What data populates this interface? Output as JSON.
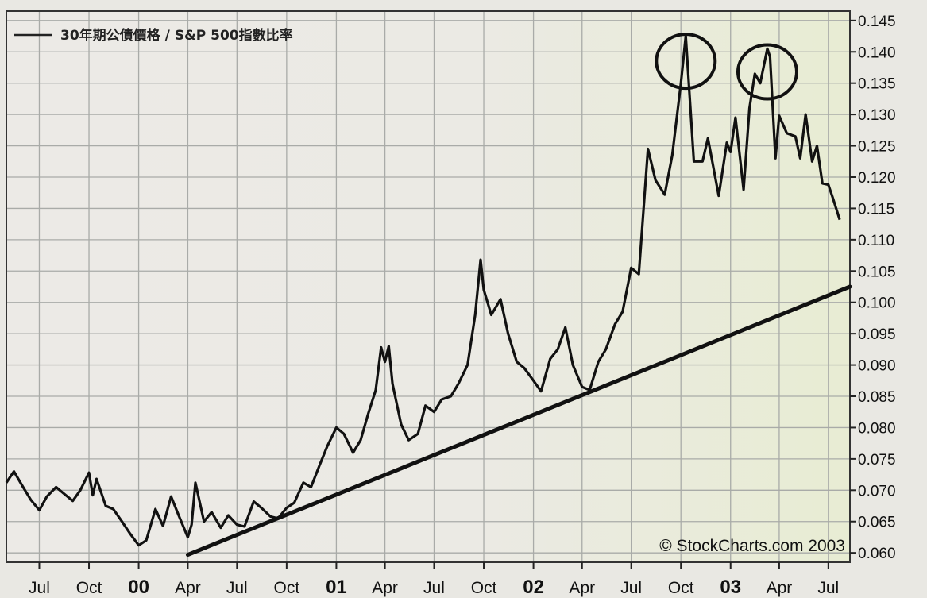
{
  "chart_data": {
    "type": "line",
    "title": "",
    "xlabel": "",
    "ylabel": "",
    "legend": {
      "label": "30年期公債價格 / S&P 500指數比率",
      "placement": "top-left"
    },
    "copyright": "© StockCharts.com 2003",
    "ylim": [
      0.0585,
      0.1465
    ],
    "y_ticks": [
      "0.060",
      "0.065",
      "0.070",
      "0.075",
      "0.080",
      "0.085",
      "0.090",
      "0.095",
      "0.100",
      "0.105",
      "0.110",
      "0.115",
      "0.120",
      "0.125",
      "0.130",
      "0.135",
      "0.140",
      "0.145"
    ],
    "x_range": [
      "1999-05-01",
      "2003-08-10"
    ],
    "x_ticks": [
      {
        "label": "Jul",
        "date": "1999-07-01",
        "year": false
      },
      {
        "label": "Oct",
        "date": "1999-10-01",
        "year": false
      },
      {
        "label": "00",
        "date": "2000-01-01",
        "year": true
      },
      {
        "label": "Apr",
        "date": "2000-04-01",
        "year": false
      },
      {
        "label": "Jul",
        "date": "2000-07-01",
        "year": false
      },
      {
        "label": "Oct",
        "date": "2000-10-01",
        "year": false
      },
      {
        "label": "01",
        "date": "2001-01-01",
        "year": true
      },
      {
        "label": "Apr",
        "date": "2001-04-01",
        "year": false
      },
      {
        "label": "Jul",
        "date": "2001-07-01",
        "year": false
      },
      {
        "label": "Oct",
        "date": "2001-10-01",
        "year": false
      },
      {
        "label": "02",
        "date": "2002-01-01",
        "year": true
      },
      {
        "label": "Apr",
        "date": "2002-04-01",
        "year": false
      },
      {
        "label": "Jul",
        "date": "2002-07-01",
        "year": false
      },
      {
        "label": "Oct",
        "date": "2002-10-01",
        "year": false
      },
      {
        "label": "03",
        "date": "2003-01-01",
        "year": true
      },
      {
        "label": "Apr",
        "date": "2003-04-01",
        "year": false
      },
      {
        "label": "Jul",
        "date": "2003-07-01",
        "year": false
      }
    ],
    "grid": true,
    "series": [
      {
        "color": "#111111",
        "points": [
          [
            "1999-05-01",
            0.0712
          ],
          [
            "1999-05-15",
            0.073
          ],
          [
            "1999-06-01",
            0.0705
          ],
          [
            "1999-06-15",
            0.0685
          ],
          [
            "1999-07-01",
            0.0668
          ],
          [
            "1999-07-15",
            0.069
          ],
          [
            "1999-08-01",
            0.0705
          ],
          [
            "1999-08-15",
            0.0695
          ],
          [
            "1999-09-01",
            0.0683
          ],
          [
            "1999-09-15",
            0.07
          ],
          [
            "1999-10-01",
            0.0728
          ],
          [
            "1999-10-08",
            0.0692
          ],
          [
            "1999-10-15",
            0.0718
          ],
          [
            "1999-11-01",
            0.0675
          ],
          [
            "1999-11-15",
            0.067
          ],
          [
            "1999-12-01",
            0.065
          ],
          [
            "1999-12-15",
            0.0632
          ],
          [
            "2000-01-01",
            0.0612
          ],
          [
            "2000-01-15",
            0.062
          ],
          [
            "2000-02-01",
            0.067
          ],
          [
            "2000-02-15",
            0.0643
          ],
          [
            "2000-03-01",
            0.069
          ],
          [
            "2000-03-15",
            0.066
          ],
          [
            "2000-04-01",
            0.0625
          ],
          [
            "2000-04-08",
            0.0645
          ],
          [
            "2000-04-15",
            0.0712
          ],
          [
            "2000-05-01",
            0.065
          ],
          [
            "2000-05-15",
            0.0665
          ],
          [
            "2000-06-01",
            0.064
          ],
          [
            "2000-06-15",
            0.066
          ],
          [
            "2000-07-01",
            0.0645
          ],
          [
            "2000-07-15",
            0.0642
          ],
          [
            "2000-08-01",
            0.0682
          ],
          [
            "2000-08-15",
            0.0672
          ],
          [
            "2000-09-01",
            0.0658
          ],
          [
            "2000-09-15",
            0.0655
          ],
          [
            "2000-10-01",
            0.0672
          ],
          [
            "2000-10-15",
            0.068
          ],
          [
            "2000-11-01",
            0.0712
          ],
          [
            "2000-11-15",
            0.0705
          ],
          [
            "2000-12-01",
            0.074
          ],
          [
            "2000-12-15",
            0.077
          ],
          [
            "2001-01-01",
            0.08
          ],
          [
            "2001-01-15",
            0.079
          ],
          [
            "2001-02-01",
            0.076
          ],
          [
            "2001-02-15",
            0.078
          ],
          [
            "2001-03-01",
            0.0822
          ],
          [
            "2001-03-15",
            0.086
          ],
          [
            "2001-03-25",
            0.0928
          ],
          [
            "2001-04-01",
            0.0905
          ],
          [
            "2001-04-08",
            0.093
          ],
          [
            "2001-04-15",
            0.087
          ],
          [
            "2001-05-01",
            0.0805
          ],
          [
            "2001-05-15",
            0.078
          ],
          [
            "2001-06-01",
            0.079
          ],
          [
            "2001-06-15",
            0.0835
          ],
          [
            "2001-07-01",
            0.0825
          ],
          [
            "2001-07-15",
            0.0845
          ],
          [
            "2001-08-01",
            0.085
          ],
          [
            "2001-08-15",
            0.087
          ],
          [
            "2001-09-01",
            0.09
          ],
          [
            "2001-09-15",
            0.098
          ],
          [
            "2001-09-25",
            0.1068
          ],
          [
            "2001-10-01",
            0.102
          ],
          [
            "2001-10-15",
            0.098
          ],
          [
            "2001-11-01",
            0.1005
          ],
          [
            "2001-11-15",
            0.095
          ],
          [
            "2001-12-01",
            0.0905
          ],
          [
            "2001-12-15",
            0.0895
          ],
          [
            "2002-01-01",
            0.0875
          ],
          [
            "2002-01-15",
            0.0858
          ],
          [
            "2002-02-01",
            0.091
          ],
          [
            "2002-02-15",
            0.0925
          ],
          [
            "2002-03-01",
            0.096
          ],
          [
            "2002-03-15",
            0.09
          ],
          [
            "2002-04-01",
            0.0865
          ],
          [
            "2002-04-15",
            0.086
          ],
          [
            "2002-05-01",
            0.0905
          ],
          [
            "2002-05-15",
            0.0925
          ],
          [
            "2002-06-01",
            0.0965
          ],
          [
            "2002-06-15",
            0.0985
          ],
          [
            "2002-07-01",
            0.1055
          ],
          [
            "2002-07-15",
            0.1045
          ],
          [
            "2002-08-01",
            0.1245
          ],
          [
            "2002-08-15",
            0.1195
          ],
          [
            "2002-09-01",
            0.1172
          ],
          [
            "2002-09-15",
            0.1235
          ],
          [
            "2002-10-01",
            0.135
          ],
          [
            "2002-10-10",
            0.1425
          ],
          [
            "2002-10-25",
            0.1225
          ],
          [
            "2002-11-10",
            0.1225
          ],
          [
            "2002-11-20",
            0.1262
          ],
          [
            "2002-12-10",
            0.117
          ],
          [
            "2002-12-25",
            0.1255
          ],
          [
            "2003-01-01",
            0.124
          ],
          [
            "2003-01-10",
            0.1295
          ],
          [
            "2003-01-25",
            0.118
          ],
          [
            "2003-02-05",
            0.131
          ],
          [
            "2003-02-15",
            0.1365
          ],
          [
            "2003-02-25",
            0.135
          ],
          [
            "2003-03-10",
            0.1405
          ],
          [
            "2003-03-15",
            0.1392
          ],
          [
            "2003-03-25",
            0.123
          ],
          [
            "2003-04-01",
            0.1298
          ],
          [
            "2003-04-15",
            0.127
          ],
          [
            "2003-05-01",
            0.1265
          ],
          [
            "2003-05-10",
            0.123
          ],
          [
            "2003-05-20",
            0.13
          ],
          [
            "2003-06-01",
            0.1225
          ],
          [
            "2003-06-10",
            0.125
          ],
          [
            "2003-06-20",
            0.119
          ],
          [
            "2003-07-01",
            0.1188
          ],
          [
            "2003-07-10",
            0.1165
          ],
          [
            "2003-07-22",
            0.1132
          ]
        ]
      }
    ],
    "trendline": {
      "start": [
        "2000-04-01",
        0.0597
      ],
      "end": [
        "2003-08-10",
        0.1025
      ],
      "color": "#111111"
    },
    "circled_peaks": [
      [
        "2002-10-10",
        0.1385
      ],
      [
        "2003-03-10",
        0.1368
      ]
    ]
  }
}
